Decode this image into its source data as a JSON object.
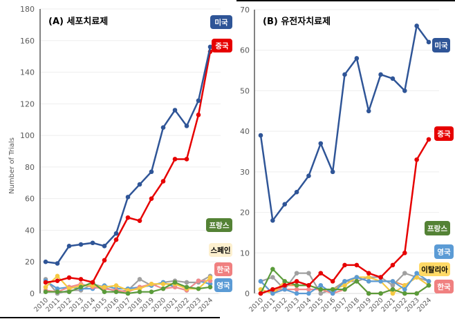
{
  "chart_data": [
    {
      "type": "line",
      "title": "(A) 세포치료제",
      "ylabel": "Number of Trials",
      "xlabel": "",
      "ylim": [
        0,
        180
      ],
      "yticks": [
        0,
        20,
        40,
        60,
        80,
        100,
        120,
        140,
        160,
        180
      ],
      "grid": true,
      "x": [
        "2010",
        "2011",
        "2012",
        "2013",
        "2014",
        "2015",
        "2016",
        "2017",
        "2018",
        "2019",
        "2020",
        "2021",
        "2022",
        "2023",
        "2024"
      ],
      "series": [
        {
          "name": "미국",
          "color": "#2f5597",
          "label_color": "#2f5597",
          "values": [
            20,
            19,
            30,
            31,
            32,
            30,
            38,
            61,
            69,
            77,
            105,
            116,
            106,
            122,
            156
          ]
        },
        {
          "name": "중국",
          "color": "#e60000",
          "label_color": "#e60000",
          "values": [
            7,
            8,
            10,
            9,
            7,
            21,
            34,
            48,
            46,
            60,
            71,
            85,
            85,
            113,
            153
          ]
        },
        {
          "name": "프랑스",
          "color": "#5a9b3a",
          "label_color": "#548235",
          "values": [
            1,
            1,
            1,
            4,
            7,
            1,
            1,
            0,
            1,
            1,
            3,
            7,
            4,
            3,
            4
          ]
        },
        {
          "name": "스페인",
          "color": "#f5c842",
          "label_color": "#fdf0cf",
          "values": [
            4,
            11,
            3,
            5,
            5,
            4,
            5,
            2,
            3,
            6,
            6,
            6,
            3,
            3,
            10
          ]
        },
        {
          "name": "한국",
          "color": "#f28a8a",
          "label_color": "#f08080",
          "values": [
            2,
            1,
            4,
            6,
            4,
            3,
            2,
            1,
            4,
            6,
            3,
            4,
            2,
            8,
            8
          ]
        },
        {
          "name": "영국",
          "color": "#5b9bd5",
          "label_color": "#5b9bd5",
          "values": [
            8,
            3,
            4,
            3,
            3,
            5,
            3,
            3,
            4,
            5,
            7,
            4,
            2,
            8,
            6
          ]
        },
        {
          "color": "#a0a0a0",
          "values": [
            9,
            0,
            2,
            2,
            6,
            4,
            1,
            2,
            9,
            5,
            7,
            8,
            7,
            7,
            11
          ]
        }
      ]
    },
    {
      "type": "line",
      "title": "(B) 유전자치료제",
      "ylabel": "",
      "xlabel": "",
      "ylim": [
        0,
        70
      ],
      "yticks": [
        0,
        10,
        20,
        30,
        40,
        50,
        60,
        70
      ],
      "grid": true,
      "x": [
        "2010",
        "2011",
        "2012",
        "2013",
        "2014",
        "2015",
        "2016",
        "2017",
        "2018",
        "2019",
        "2020",
        "2021",
        "2022",
        "2023",
        "2024"
      ],
      "series": [
        {
          "name": "미국",
          "color": "#2f5597",
          "label_color": "#2f5597",
          "values": [
            39,
            18,
            22,
            25,
            29,
            37,
            30,
            54,
            58,
            45,
            54,
            53,
            50,
            66,
            62
          ]
        },
        {
          "name": "중국",
          "color": "#e60000",
          "label_color": "#e60000",
          "values": [
            0,
            1,
            2,
            3,
            2,
            5,
            3,
            7,
            7,
            5,
            4,
            7,
            10,
            33,
            38
          ]
        },
        {
          "name": "프랑스",
          "color": "#5a9b3a",
          "label_color": "#548235",
          "values": [
            0,
            6,
            3,
            2,
            2,
            1,
            1,
            1,
            3,
            0,
            0,
            1,
            0,
            0,
            2
          ]
        },
        {
          "name": "영국",
          "color": "#5b9bd5",
          "label_color": "#5b9bd5",
          "values": [
            3,
            0,
            1,
            0,
            0,
            2,
            0,
            3,
            4,
            3,
            3,
            3,
            1,
            5,
            3
          ]
        },
        {
          "name": "이탈리아",
          "color": "#f5c842",
          "label_color": "#ffd966",
          "values": [
            1,
            0,
            3,
            2,
            2,
            1,
            1,
            2,
            4,
            4,
            3,
            0,
            2,
            4,
            2
          ]
        },
        {
          "name": "한국",
          "color": "#f28a8a",
          "label_color": "#f08080",
          "values": [
            0,
            1,
            1,
            1,
            1,
            1,
            0,
            1,
            3,
            0,
            0,
            1,
            0,
            0,
            2
          ]
        },
        {
          "color": "#a0a0a0",
          "values": [
            3,
            4,
            1,
            5,
            5,
            0,
            1,
            3,
            3,
            4,
            4,
            2,
            5,
            4,
            3
          ]
        },
        {
          "color": "#ed9a55",
          "values": [
            3,
            0,
            2,
            2,
            2,
            1,
            1,
            3,
            4,
            3,
            3,
            3,
            2,
            4,
            3
          ]
        }
      ]
    }
  ]
}
